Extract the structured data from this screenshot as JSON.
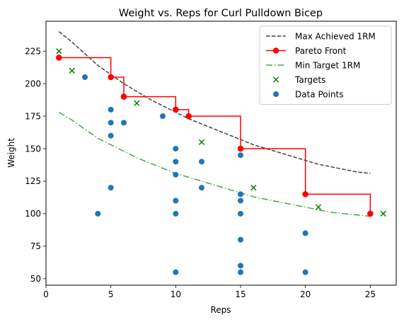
{
  "chart_data": {
    "type": "scatter",
    "title": "Weight vs. Reps for Curl Pulldown Bicep",
    "xlabel": "Reps",
    "ylabel": "Weight",
    "xlim": [
      0,
      27
    ],
    "ylim": [
      45,
      248
    ],
    "x_ticks": [
      0,
      5,
      10,
      15,
      20,
      25
    ],
    "y_ticks": [
      50,
      75,
      100,
      125,
      150,
      175,
      200,
      225
    ],
    "grid": false,
    "legend_position": "top-right",
    "series": [
      {
        "name": "Max Achieved 1RM",
        "kind": "line",
        "style": "dashed",
        "color": "#444444",
        "x": [
          1,
          2,
          3,
          4,
          5,
          6,
          7,
          8,
          9,
          10,
          11,
          12,
          13,
          14,
          15,
          16,
          17,
          18,
          19,
          20,
          21,
          22,
          23,
          24,
          25
        ],
        "y": [
          240,
          232,
          223,
          214,
          207,
          200,
          194,
          188,
          183,
          178,
          173,
          169,
          165,
          161,
          157,
          153,
          150,
          147,
          144,
          141,
          138,
          136,
          134,
          132,
          131
        ]
      },
      {
        "name": "Pareto Front",
        "kind": "step",
        "color": "#ff0000",
        "x": [
          1,
          5,
          6,
          10,
          11,
          15,
          20,
          25
        ],
        "y": [
          220,
          205,
          190,
          180,
          175,
          150,
          115,
          100
        ]
      },
      {
        "name": "Min Target 1RM",
        "kind": "line",
        "style": "dashdot",
        "color": "#4ca64c",
        "x": [
          1,
          2,
          3,
          4,
          5,
          6,
          7,
          8,
          9,
          10,
          11,
          12,
          13,
          14,
          15,
          16,
          17,
          18,
          19,
          20,
          21,
          22,
          23,
          24,
          25
        ],
        "y": [
          178,
          172,
          165,
          158,
          153,
          148,
          143,
          139,
          135,
          131,
          128,
          125,
          122,
          119,
          116,
          113,
          111,
          109,
          107,
          105,
          103,
          101,
          100,
          99,
          98
        ]
      },
      {
        "name": "Targets",
        "kind": "scatter",
        "marker": "x",
        "color": "#008000",
        "x": [
          1,
          2,
          7,
          12,
          16,
          21,
          26
        ],
        "y": [
          225,
          210,
          185,
          155,
          120,
          105,
          100
        ]
      },
      {
        "name": "Data Points",
        "kind": "scatter",
        "marker": "circle",
        "color": "#1f77b4",
        "x": [
          3,
          4,
          5,
          5,
          5,
          5,
          6,
          9,
          10,
          10,
          10,
          10,
          10,
          10,
          12,
          12,
          15,
          15,
          15,
          15,
          15,
          15,
          15,
          20,
          20
        ],
        "y": [
          205,
          100,
          180,
          170,
          160,
          120,
          170,
          175,
          150,
          140,
          130,
          110,
          100,
          55,
          140,
          120,
          145,
          115,
          110,
          100,
          80,
          60,
          55,
          85,
          55
        ]
      }
    ]
  }
}
